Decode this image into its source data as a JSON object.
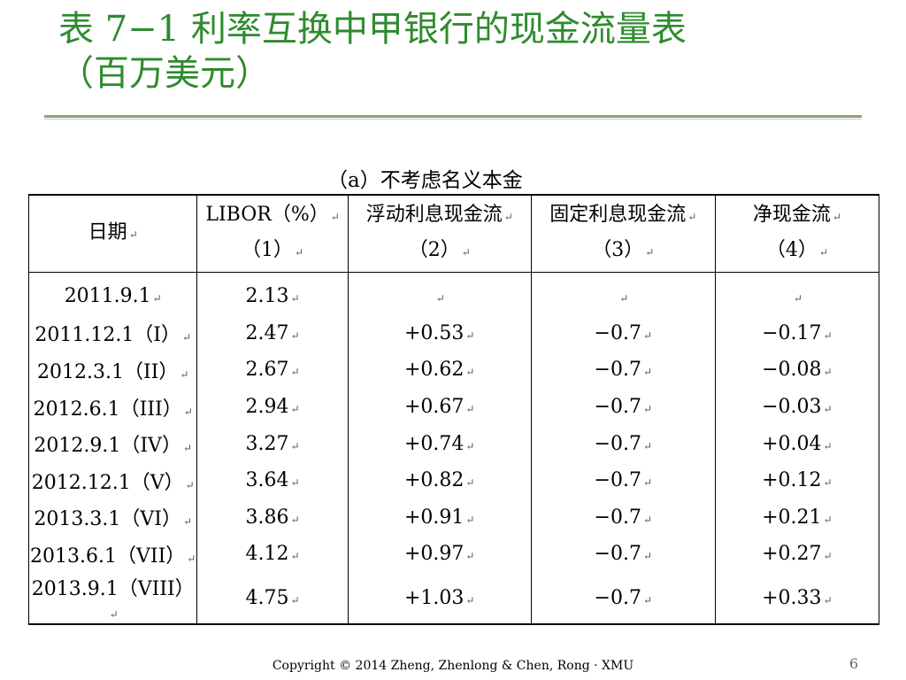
{
  "slide": {
    "title_prefix": "表 ",
    "title_number": "7−1",
    "title_rest": " 利率互换中甲银行的现金流量表",
    "title_line2": "（百万美元）"
  },
  "table": {
    "caption": "（a）不考虑名义本金",
    "headers": [
      {
        "line1": "日期",
        "line2": ""
      },
      {
        "line1": "LIBOR（%）",
        "line2": "（1）"
      },
      {
        "line1": "浮动利息现金流",
        "line2": "（2）"
      },
      {
        "line1": "固定利息现金流",
        "line2": "（3）"
      },
      {
        "line1": "净现金流",
        "line2": "（4）"
      }
    ],
    "rows": [
      [
        "2011.9.1",
        "2.13",
        "",
        "",
        ""
      ],
      [
        "2011.12.1（I）",
        "2.47",
        "+0.53",
        "−0.7",
        "−0.17"
      ],
      [
        "2012.3.1（II）",
        "2.67",
        "+0.62",
        "−0.7",
        "−0.08"
      ],
      [
        "2012.6.1（III）",
        "2.94",
        "+0.67",
        "−0.7",
        "−0.03"
      ],
      [
        "2012.9.1（IV）",
        "3.27",
        "+0.74",
        "−0.7",
        "+0.04"
      ],
      [
        "2012.12.1（V）",
        "3.64",
        "+0.82",
        "−0.7",
        "+0.12"
      ],
      [
        "2013.3.1（VI）",
        "3.86",
        "+0.91",
        "−0.7",
        "+0.21"
      ],
      [
        "2013.6.1（VII）",
        "4.12",
        "+0.97",
        "−0.7",
        "+0.27"
      ],
      [
        "2013.9.1（VIII）",
        "4.75",
        "+1.03",
        "−0.7",
        "+0.33"
      ]
    ]
  },
  "footer": {
    "copyright": "Copyright © 2014 Zheng, Zhenlong & Chen, Rong · XMU",
    "page_number": "6"
  },
  "colors": {
    "title": "#2e8b2e",
    "rule": "#8aa47a"
  }
}
